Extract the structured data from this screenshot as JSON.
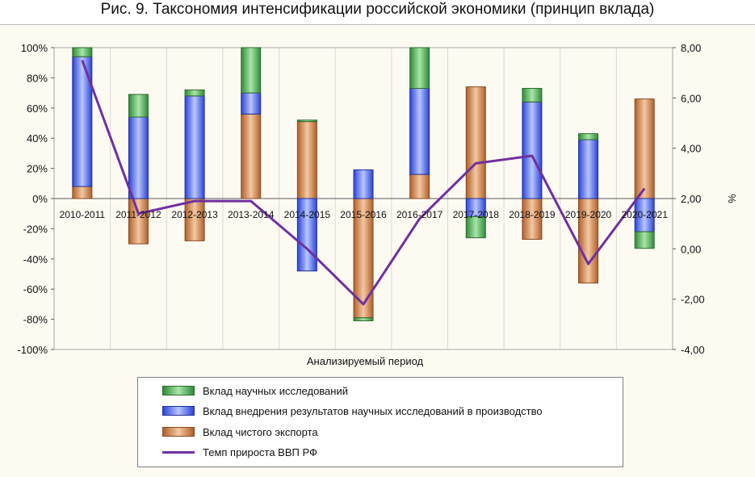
{
  "title": "Рис. 9. Таксономия интенсификации российской экономики (принцип вклада)",
  "chart_data": {
    "type": "bar",
    "stacked": true,
    "title": "Рис. 9. Таксономия интенсификации российской экономики (принцип вклада)",
    "xlabel": "Анализируемый период",
    "ylabel_right": "%",
    "categories": [
      "2010-2011",
      "2011-2012",
      "2012-2013",
      "2013-2014",
      "2014-2015",
      "2015-2016",
      "2016-2017",
      "2017-2018",
      "2018-2019",
      "2019-2020",
      "2020-2021"
    ],
    "ylim_left": [
      -100,
      100
    ],
    "ylim_right": [
      -4,
      8
    ],
    "left_ticks": [
      "100%",
      "80%",
      "60%",
      "40%",
      "20%",
      "0%",
      "-20%",
      "-40%",
      "-60%",
      "-80%",
      "-100%"
    ],
    "right_ticks": [
      "8,00",
      "6,00",
      "4,00",
      "2,00",
      "0,00",
      "-2,00",
      "-4,00"
    ],
    "series": [
      {
        "name": "Вклад чистого экспорта",
        "type": "bar",
        "axis": "left",
        "color": "#c87941",
        "values": [
          8,
          -30,
          -28,
          56,
          51,
          -79,
          16,
          74,
          -27,
          -56,
          66
        ]
      },
      {
        "name": "Вклад внедрения результатов научных исследований в производство",
        "type": "bar",
        "axis": "left",
        "color": "#4a6cf7",
        "values": [
          86,
          54,
          68,
          14,
          -48,
          19,
          57,
          -12,
          64,
          39,
          -22
        ]
      },
      {
        "name": "Вклад научных исследований",
        "type": "bar",
        "axis": "left",
        "color": "#4caf50",
        "values": [
          6,
          15,
          4,
          30,
          1,
          -2,
          27,
          -14,
          9,
          4,
          -11
        ]
      },
      {
        "name": "Темп прироста ВВП РФ",
        "type": "line",
        "axis": "right",
        "color": "#7030a0",
        "values": [
          7.5,
          1.4,
          1.9,
          1.9,
          0.0,
          -2.2,
          1.2,
          3.4,
          3.7,
          -0.6,
          2.4
        ]
      }
    ],
    "legend_position": "bottom",
    "grid": true
  }
}
